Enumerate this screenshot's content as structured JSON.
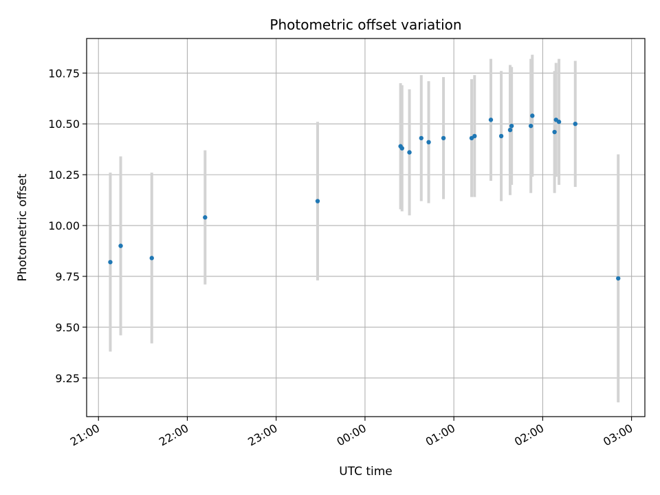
{
  "chart_data": {
    "type": "scatter",
    "title": "Photometric offset variation",
    "xlabel": "UTC time",
    "ylabel": "Photometric offset",
    "grid": true,
    "x_ticks": [
      "21:00",
      "22:00",
      "23:00",
      "00:00",
      "01:00",
      "02:00",
      "03:00"
    ],
    "y_ticks": [
      "9.25",
      "9.50",
      "9.75",
      "10.00",
      "10.25",
      "10.50",
      "10.75"
    ],
    "xlim": [
      "20:52",
      "03:09"
    ],
    "ylim": [
      9.06,
      10.92
    ],
    "colors": {
      "points": "#1f77b4",
      "error_bars": "#d3d3d3",
      "grid": "#b0b0b0"
    },
    "series": [
      {
        "points": [
          {
            "time": "21:08",
            "y": 9.82,
            "err": 0.44
          },
          {
            "time": "21:15",
            "y": 9.9,
            "err": 0.44
          },
          {
            "time": "21:36",
            "y": 9.84,
            "err": 0.42
          },
          {
            "time": "22:12",
            "y": 10.04,
            "err": 0.33
          },
          {
            "time": "23:28",
            "y": 10.12,
            "err": 0.39
          },
          {
            "time": "00:24",
            "y": 10.39,
            "err": 0.31
          },
          {
            "time": "00:25",
            "y": 10.38,
            "err": 0.31
          },
          {
            "time": "00:30",
            "y": 10.36,
            "err": 0.31
          },
          {
            "time": "00:38",
            "y": 10.43,
            "err": 0.31
          },
          {
            "time": "00:43",
            "y": 10.41,
            "err": 0.3
          },
          {
            "time": "00:53",
            "y": 10.43,
            "err": 0.3
          },
          {
            "time": "01:12",
            "y": 10.43,
            "err": 0.29
          },
          {
            "time": "01:14",
            "y": 10.44,
            "err": 0.3
          },
          {
            "time": "01:25",
            "y": 10.52,
            "err": 0.3
          },
          {
            "time": "01:32",
            "y": 10.44,
            "err": 0.32
          },
          {
            "time": "01:38",
            "y": 10.47,
            "err": 0.32
          },
          {
            "time": "01:39",
            "y": 10.49,
            "err": 0.29
          },
          {
            "time": "01:52",
            "y": 10.49,
            "err": 0.33
          },
          {
            "time": "01:53",
            "y": 10.54,
            "err": 0.3
          },
          {
            "time": "02:08",
            "y": 10.46,
            "err": 0.3
          },
          {
            "time": "02:09",
            "y": 10.52,
            "err": 0.28
          },
          {
            "time": "02:11",
            "y": 10.51,
            "err": 0.31
          },
          {
            "time": "02:22",
            "y": 10.5,
            "err": 0.31
          },
          {
            "time": "02:51",
            "y": 9.74,
            "err": 0.61
          }
        ]
      }
    ]
  }
}
